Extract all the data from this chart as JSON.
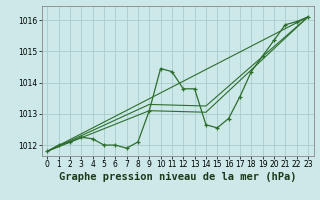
{
  "title": "Graphe pression niveau de la mer (hPa)",
  "bg_color": "#cce8e8",
  "grid_color": "#aacccc",
  "line_color": "#2d6e2d",
  "spine_color": "#888888",
  "xlim": [
    -0.5,
    23.5
  ],
  "ylim": [
    1011.65,
    1016.45
  ],
  "yticks": [
    1012,
    1013,
    1014,
    1015,
    1016
  ],
  "xticks": [
    0,
    1,
    2,
    3,
    4,
    5,
    6,
    7,
    8,
    9,
    10,
    11,
    12,
    13,
    14,
    15,
    16,
    17,
    18,
    19,
    20,
    21,
    22,
    23
  ],
  "line1": {
    "x": [
      0,
      1,
      2,
      3,
      4,
      5,
      6,
      7,
      8,
      9,
      10,
      11,
      12,
      13,
      14,
      15,
      16,
      17,
      18,
      19,
      20,
      21,
      22,
      23
    ],
    "y": [
      1011.8,
      1012.0,
      1012.1,
      1012.25,
      1012.2,
      1012.0,
      1012.0,
      1011.9,
      1012.1,
      1013.1,
      1014.45,
      1014.35,
      1013.8,
      1013.8,
      1012.65,
      1012.55,
      1012.85,
      1013.55,
      1014.35,
      1014.85,
      1015.35,
      1015.85,
      1015.95,
      1016.1
    ]
  },
  "line2": {
    "x": [
      0,
      23
    ],
    "y": [
      1011.8,
      1016.1
    ]
  },
  "line3": {
    "x": [
      0,
      9,
      14,
      23
    ],
    "y": [
      1011.8,
      1013.3,
      1013.25,
      1016.1
    ]
  },
  "line4": {
    "x": [
      0,
      9,
      14,
      23
    ],
    "y": [
      1011.8,
      1013.1,
      1013.05,
      1016.1
    ]
  },
  "tick_fontsize": 5.5,
  "label_fontsize": 7.5
}
